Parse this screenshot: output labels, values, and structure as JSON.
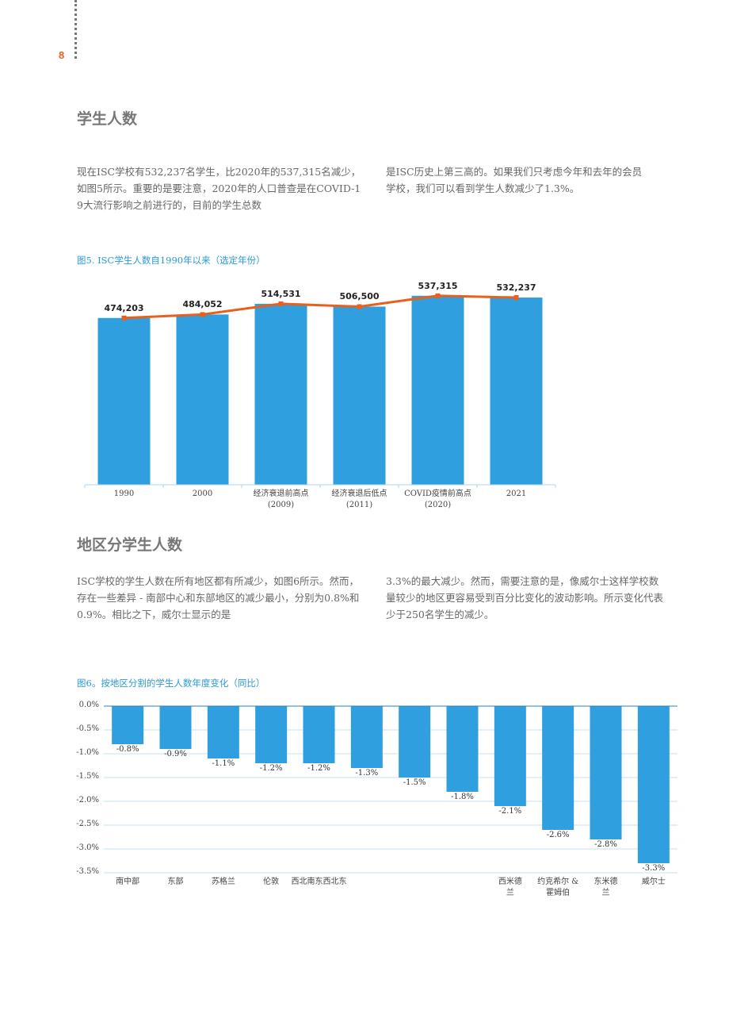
{
  "page_number": "8",
  "sections": [
    {
      "heading": "学生人数",
      "columns": [
        "现在ISC学校有532,237名学生，比2020年的537,315名减少，如图5所示。重要的是要注意，2020年的人口普查是在COVID-19大流行影响之前进行的，目前的学生总数",
        "是ISC历史上第三高的。如果我们只考虑今年和去年的会员学校，我们可以看到学生人数减少了1.3%。"
      ]
    },
    {
      "heading": "地区分学生人数",
      "columns": [
        "ISC学校的学生人数在所有地区都有所减少，如图6所示。然而，存在一些差异 - 南部中心和东部地区的减少最小，分别为0.8%和0.9%。相比之下，威尔士显示的是",
        "3.3%的最大减少。然而，需要注意的是，像威尔士这样学校数量较少的地区更容易受到百分比变化的波动影响。所示变化代表少于250名学生的减少。"
      ]
    }
  ],
  "chart_data": [
    {
      "type": "bar",
      "title": "图5. ISC学生人数自1990年以来（选定年份）",
      "categories": [
        "1990",
        "2000",
        "经济衰退前高点\n(2009)",
        "经济衰退后低点\n(2011)",
        "COVID疫情前高点\n(2020)",
        "2021"
      ],
      "values": [
        474203,
        484052,
        514531,
        506500,
        537315,
        532237
      ],
      "value_labels": [
        "474,203",
        "484,052",
        "514,531",
        "506,500",
        "537,315",
        "532,237"
      ],
      "color": "#2f9fe0",
      "overlay": {
        "type": "line",
        "color": "#e8601c"
      },
      "ylim": [
        0,
        600000
      ]
    },
    {
      "type": "bar",
      "title": "图6。按地区分割的学生人数年度变化（同比）",
      "categories": [
        "南中部",
        "东部",
        "苏格兰",
        "伦敦",
        "西北南东西北东",
        null,
        null,
        null,
        "西米德\n兰",
        "约克希尔 &\n霍姆伯",
        "东米德\n兰",
        "威尔士"
      ],
      "values": [
        -0.8,
        -0.9,
        -1.1,
        -1.2,
        -1.2,
        -1.3,
        -1.5,
        -1.8,
        -2.1,
        -2.6,
        -2.8,
        -3.3
      ],
      "value_labels": [
        "-0.8%",
        "-0.9%",
        "-1.1%",
        "-1.2%",
        "-1.2%",
        "-1.3%",
        "-1.5%",
        "-1.8%",
        "-2.1%",
        "-2.6%",
        "-2.8%",
        "-3.3%"
      ],
      "color": "#2f9fe0",
      "ylim": [
        -3.5,
        0
      ],
      "yticks": [
        {
          "value": 0,
          "label": "0.0%"
        },
        {
          "value": -0.5,
          "label": "-0.5%"
        },
        {
          "value": -1,
          "label": "-1.0%"
        },
        {
          "value": -1.5,
          "label": "-1.5%"
        },
        {
          "value": -2,
          "label": "-2.0%"
        },
        {
          "value": -2.5,
          "label": "-2.5%"
        },
        {
          "value": -3,
          "label": "-3.0%"
        },
        {
          "value": -3.5,
          "label": "-3.5%"
        }
      ],
      "grid": true
    }
  ]
}
